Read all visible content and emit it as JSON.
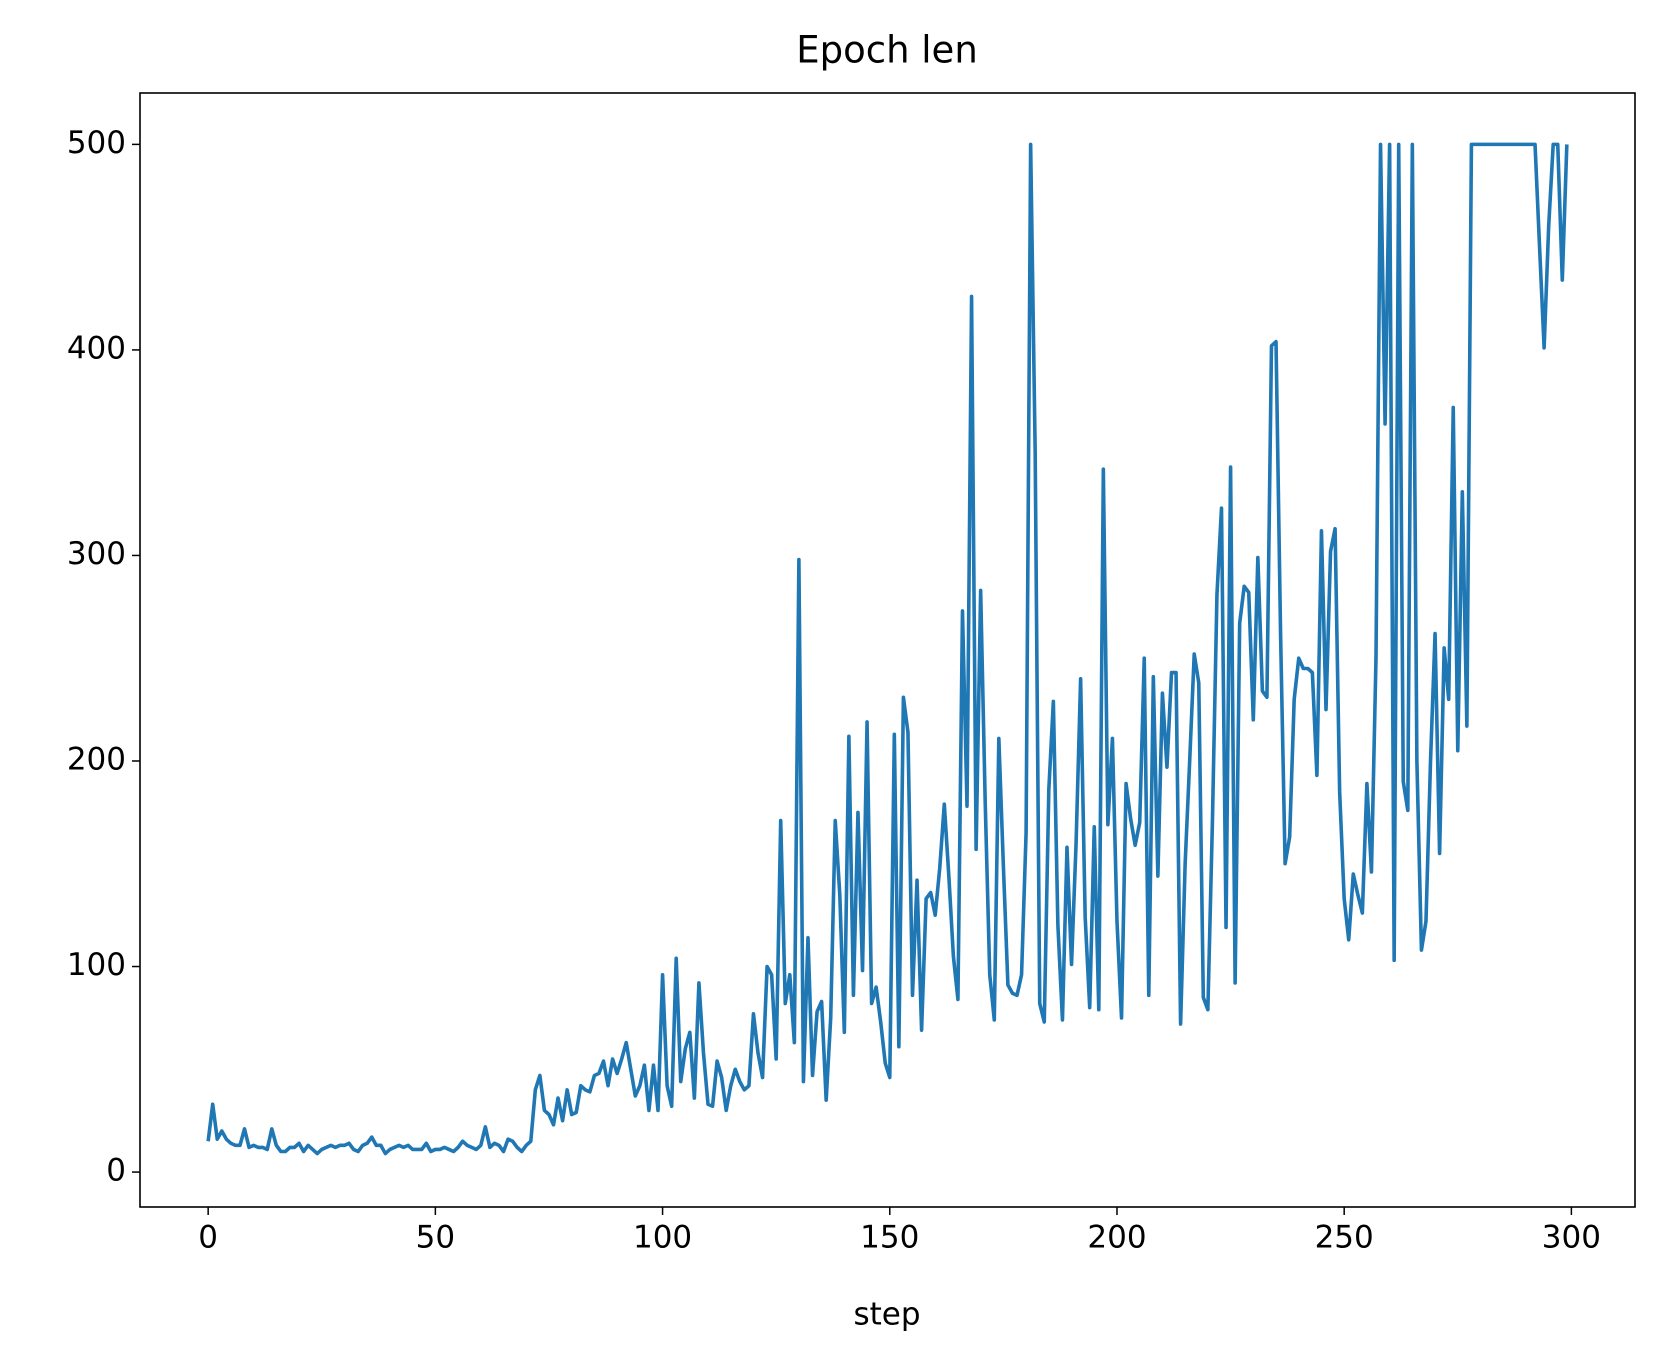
{
  "chart_data": {
    "type": "line",
    "title": "Epoch len",
    "x_label": "step",
    "x": [
      0,
      1,
      2,
      3,
      4,
      5,
      6,
      7,
      8,
      9,
      10,
      11,
      12,
      13,
      14,
      15,
      16,
      17,
      18,
      19,
      20,
      21,
      22,
      23,
      24,
      25,
      26,
      27,
      28,
      29,
      30,
      31,
      32,
      33,
      34,
      35,
      36,
      37,
      38,
      39,
      40,
      41,
      42,
      43,
      44,
      45,
      46,
      47,
      48,
      49,
      50,
      51,
      52,
      53,
      54,
      55,
      56,
      57,
      58,
      59,
      60,
      61,
      62,
      63,
      64,
      65,
      66,
      67,
      68,
      69,
      70,
      71,
      72,
      73,
      74,
      75,
      76,
      77,
      78,
      79,
      80,
      81,
      82,
      83,
      84,
      85,
      86,
      87,
      88,
      89,
      90,
      91,
      92,
      93,
      94,
      95,
      96,
      97,
      98,
      99,
      100,
      101,
      102,
      103,
      104,
      105,
      106,
      107,
      108,
      109,
      110,
      111,
      112,
      113,
      114,
      115,
      116,
      117,
      118,
      119,
      120,
      121,
      122,
      123,
      124,
      125,
      126,
      127,
      128,
      129,
      130,
      131,
      132,
      133,
      134,
      135,
      136,
      137,
      138,
      139,
      140,
      141,
      142,
      143,
      144,
      145,
      146,
      147,
      148,
      149,
      150,
      151,
      152,
      153,
      154,
      155,
      156,
      157,
      158,
      159,
      160,
      161,
      162,
      163,
      164,
      165,
      166,
      167,
      168,
      169,
      170,
      171,
      172,
      173,
      174,
      175,
      176,
      177,
      178,
      179,
      180,
      181,
      182,
      183,
      184,
      185,
      186,
      187,
      188,
      189,
      190,
      191,
      192,
      193,
      194,
      195,
      196,
      197,
      198,
      199,
      200,
      201,
      202,
      203,
      204,
      205,
      206,
      207,
      208,
      209,
      210,
      211,
      212,
      213,
      214,
      215,
      216,
      217,
      218,
      219,
      220,
      221,
      222,
      223,
      224,
      225,
      226,
      227,
      228,
      229,
      230,
      231,
      232,
      233,
      234,
      235,
      236,
      237,
      238,
      239,
      240,
      241,
      242,
      243,
      244,
      245,
      246,
      247,
      248,
      249,
      250,
      251,
      252,
      253,
      254,
      255,
      256,
      257,
      258,
      259,
      260,
      261,
      262,
      263,
      264,
      265,
      266,
      267,
      268,
      269,
      270,
      271,
      272,
      273,
      274,
      275,
      276,
      277,
      278,
      279,
      280,
      281,
      282,
      283,
      284,
      285,
      286,
      287,
      288,
      289,
      290,
      291,
      292,
      293,
      294,
      295,
      296,
      297,
      298,
      299
    ],
    "series": [
      {
        "color": "#1f77b4",
        "values": [
          15,
          33,
          16,
          20,
          16,
          14,
          13,
          13,
          21,
          12,
          13,
          12,
          12,
          11,
          21,
          13,
          10,
          10,
          12,
          12,
          14,
          10,
          13,
          11,
          9,
          11,
          12,
          13,
          12,
          13,
          13,
          14,
          11,
          10,
          13,
          14,
          17,
          13,
          13,
          9,
          11,
          12,
          13,
          12,
          13,
          11,
          11,
          11,
          14,
          10,
          11,
          11,
          12,
          11,
          10,
          12,
          15,
          13,
          12,
          11,
          13,
          22,
          12,
          14,
          13,
          10,
          16,
          15,
          12,
          10,
          13,
          15,
          40,
          47,
          30,
          28,
          23,
          36,
          25,
          40,
          28,
          29,
          42,
          40,
          39,
          47,
          48,
          54,
          42,
          55,
          48,
          55,
          63,
          50,
          37,
          42,
          52,
          30,
          52,
          30,
          96,
          42,
          32,
          104,
          44,
          60,
          68,
          36,
          92,
          58,
          33,
          32,
          54,
          46,
          30,
          42,
          50,
          44,
          40,
          42,
          77,
          58,
          46,
          100,
          96,
          55,
          171,
          82,
          96,
          63,
          298,
          44,
          114,
          47,
          78,
          83,
          35,
          75,
          171,
          135,
          68,
          212,
          86,
          175,
          98,
          219,
          82,
          90,
          73,
          53,
          46,
          213,
          61,
          231,
          214,
          86,
          142,
          69,
          133,
          136,
          125,
          148,
          179,
          144,
          105,
          84,
          273,
          178,
          426,
          157,
          283,
          180,
          96,
          74,
          211,
          149,
          91,
          87,
          86,
          96,
          165,
          500,
          350,
          82,
          73,
          186,
          229,
          120,
          74,
          158,
          101,
          160,
          240,
          124,
          80,
          168,
          79,
          342,
          169,
          211,
          122,
          75,
          189,
          172,
          159,
          170,
          250,
          86,
          241,
          144,
          233,
          197,
          243,
          243,
          72,
          150,
          200,
          252,
          238,
          85,
          79,
          170,
          281,
          323,
          119,
          343,
          92,
          267,
          285,
          282,
          220,
          299,
          234,
          231,
          402,
          404,
          262,
          150,
          163,
          230,
          250,
          245,
          245,
          243,
          193,
          312,
          225,
          302,
          313,
          185,
          133,
          113,
          145,
          135,
          126,
          189,
          146,
          250,
          500,
          364,
          500,
          103,
          500,
          190,
          176,
          500,
          200,
          108,
          122,
          200,
          262,
          155,
          255,
          230,
          372,
          205,
          331,
          217,
          500,
          500,
          500,
          500,
          500,
          500,
          500,
          500,
          500,
          500,
          500,
          500,
          500,
          500,
          500,
          450,
          401,
          460,
          500,
          500,
          434,
          500
        ]
      }
    ],
    "xlim": [
      -15,
      314
    ],
    "xticks": [
      0,
      50,
      100,
      150,
      200,
      250,
      300
    ],
    "ylim": [
      -17,
      525
    ],
    "yticks": [
      0,
      100,
      200,
      300,
      400,
      500
    ]
  }
}
